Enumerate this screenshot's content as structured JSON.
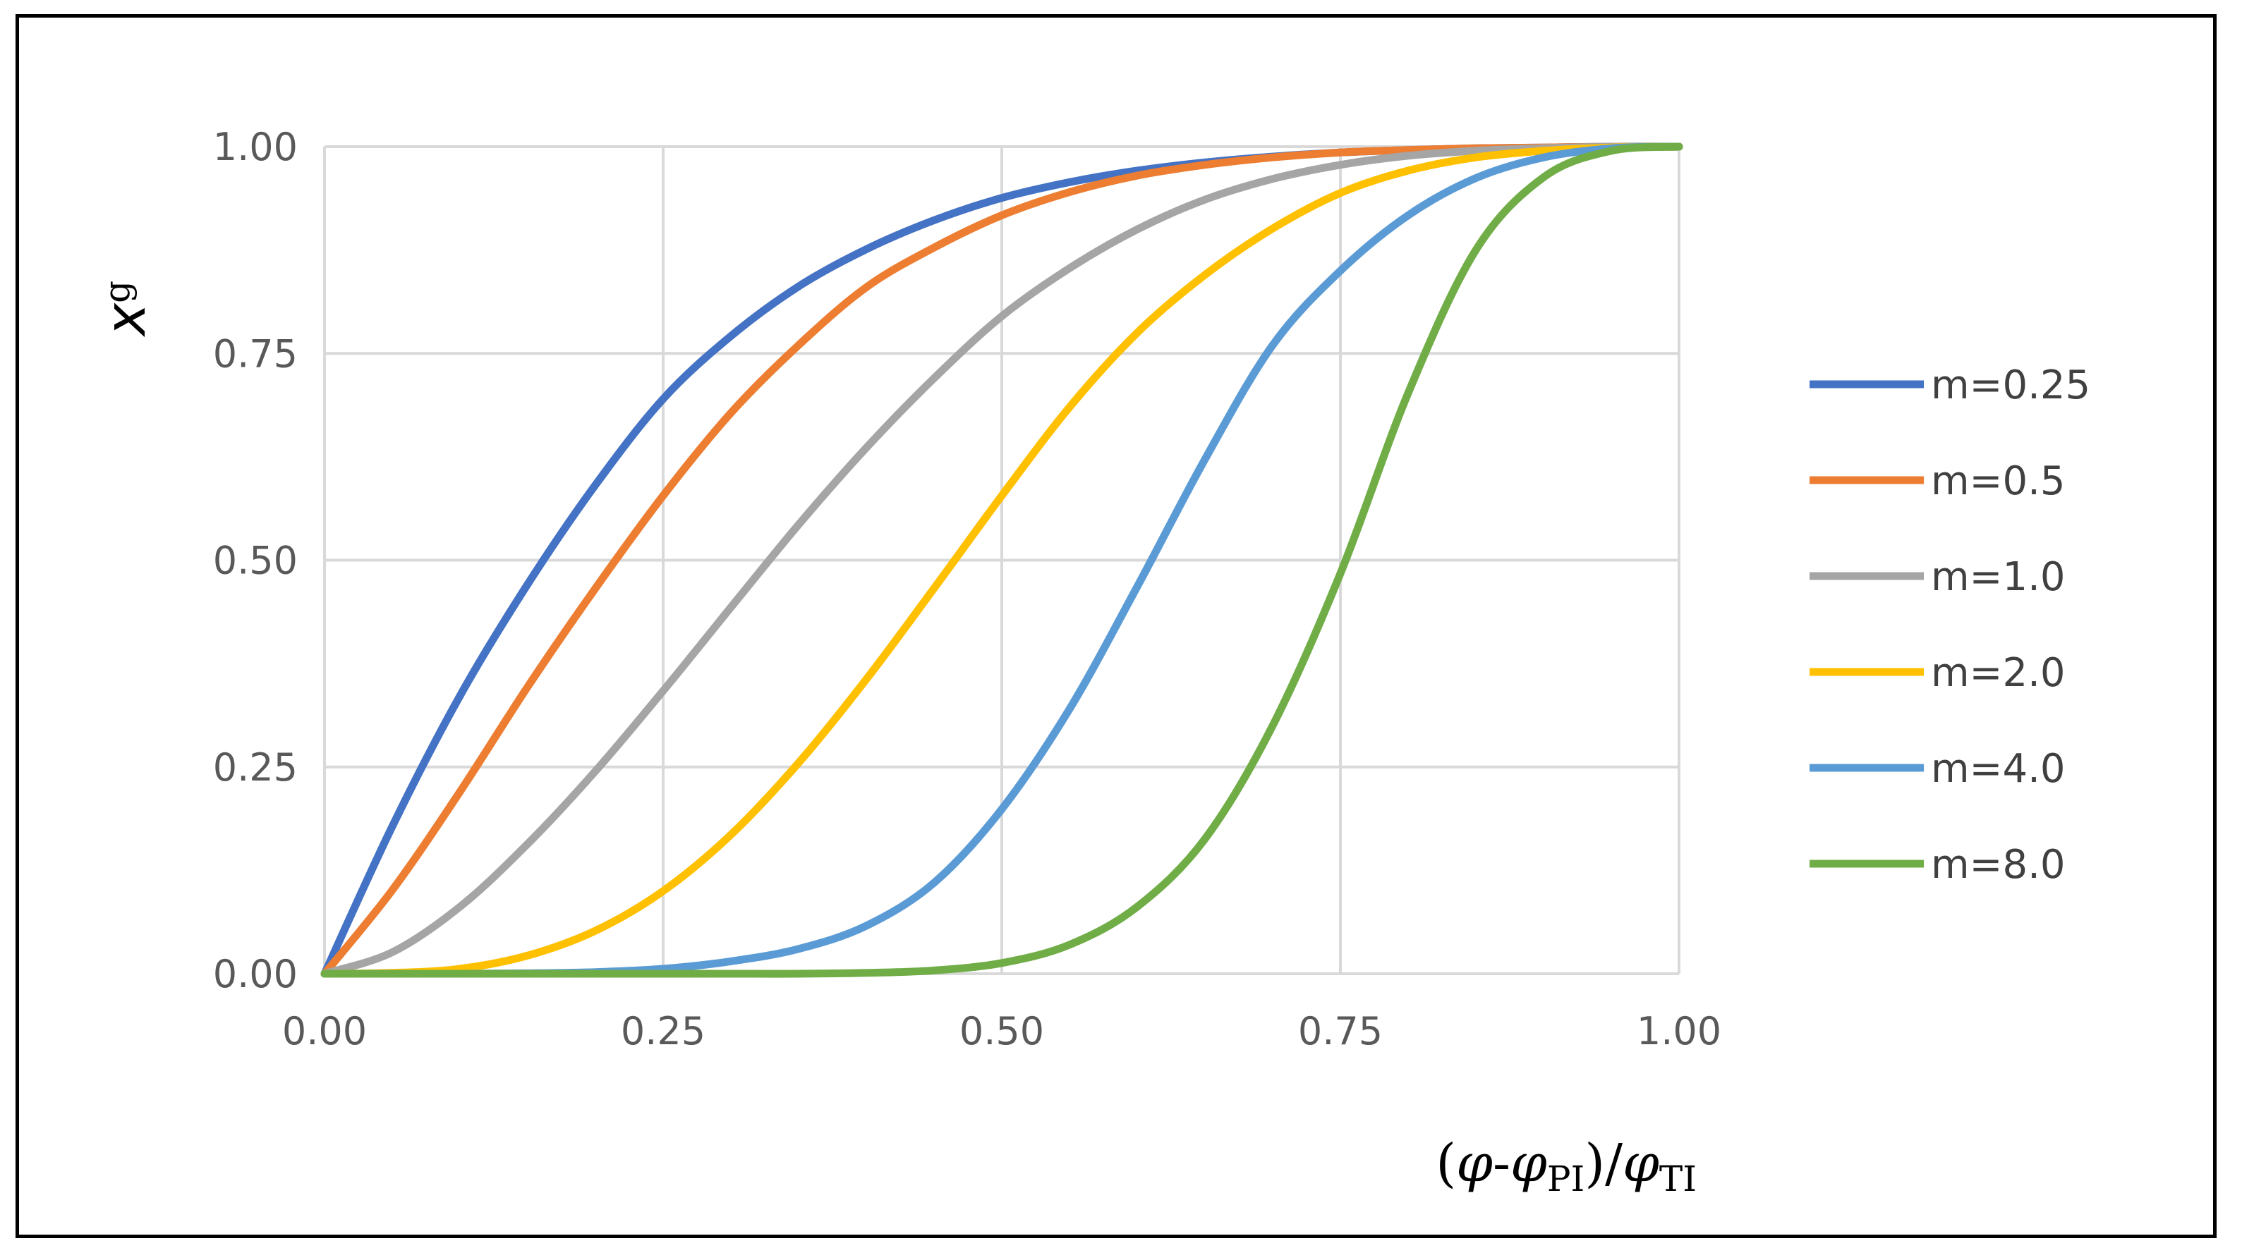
{
  "chart_data": {
    "type": "line",
    "title": "",
    "xlabel": {
      "open": "(",
      "phi": "φ",
      "dash": "-",
      "phi2": "φ",
      "sub1": "PI",
      "close": ")/",
      "phi3": "φ",
      "sub2": "TI"
    },
    "ylabel": {
      "main": "x",
      "sub": "g"
    },
    "xlim": [
      0,
      1
    ],
    "ylim": [
      0,
      1
    ],
    "grid": true,
    "legend_position": "right",
    "x_ticks": [
      "0.00",
      "0.25",
      "0.50",
      "0.75",
      "1.00"
    ],
    "y_ticks": [
      "0.00",
      "0.25",
      "0.50",
      "0.75",
      "1.00"
    ],
    "x": [
      0,
      0.05,
      0.1,
      0.15,
      0.2,
      0.25,
      0.3,
      0.35,
      0.4,
      0.45,
      0.5,
      0.55,
      0.6,
      0.65,
      0.7,
      0.75,
      0.8,
      0.85,
      0.9,
      0.95,
      1.0
    ],
    "series": [
      {
        "name": "m=0.25",
        "color": "#4472C4",
        "values": [
          0,
          0.178,
          0.336,
          0.471,
          0.591,
          0.695,
          0.771,
          0.831,
          0.876,
          0.911,
          0.938,
          0.957,
          0.971,
          0.981,
          0.988,
          0.993,
          0.996,
          0.998,
          0.999,
          1.0,
          1.0
        ]
      },
      {
        "name": "m=0.5",
        "color": "#ED7D31",
        "values": [
          0,
          0.101,
          0.22,
          0.347,
          0.466,
          0.578,
          0.678,
          0.76,
          0.83,
          0.878,
          0.917,
          0.945,
          0.965,
          0.978,
          0.987,
          0.993,
          0.996,
          0.998,
          0.999,
          1.0,
          1.0
        ]
      },
      {
        "name": "m=1.0",
        "color": "#A5A5A5",
        "values": [
          0,
          0.026,
          0.081,
          0.157,
          0.245,
          0.342,
          0.443,
          0.543,
          0.636,
          0.72,
          0.795,
          0.853,
          0.9,
          0.936,
          0.961,
          0.978,
          0.989,
          0.995,
          0.998,
          1.0,
          1.0
        ]
      },
      {
        "name": "m=2.0",
        "color": "#FFC000",
        "values": [
          0,
          0.001,
          0.006,
          0.022,
          0.052,
          0.1,
          0.168,
          0.255,
          0.356,
          0.466,
          0.578,
          0.685,
          0.775,
          0.845,
          0.901,
          0.944,
          0.971,
          0.987,
          0.995,
          0.999,
          1.0
        ]
      },
      {
        "name": "m=4.0",
        "color": "#5B9BD5",
        "values": [
          0,
          0,
          0,
          0.0005,
          0.002,
          0.006,
          0.015,
          0.03,
          0.058,
          0.11,
          0.199,
          0.32,
          0.468,
          0.622,
          0.76,
          0.85,
          0.917,
          0.962,
          0.987,
          0.998,
          1.0
        ]
      },
      {
        "name": "m=8.0",
        "color": "#70AD47",
        "values": [
          0,
          0,
          0,
          0,
          0,
          0,
          0,
          0,
          0.001,
          0.004,
          0.013,
          0.035,
          0.081,
          0.163,
          0.3,
          0.484,
          0.702,
          0.875,
          0.963,
          0.995,
          1.0
        ]
      }
    ]
  }
}
